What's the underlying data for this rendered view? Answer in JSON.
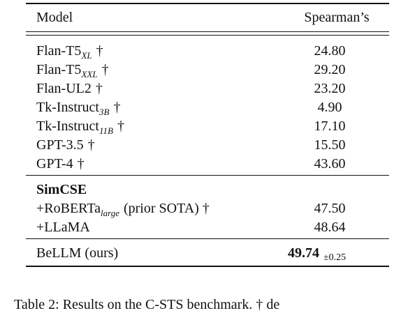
{
  "table": {
    "header": [
      "Model",
      "Spearman’s"
    ],
    "sections": [
      {
        "rows": [
          {
            "model": "Flan-T5",
            "sub": "XL",
            "suffix": "†",
            "score": "24.80"
          },
          {
            "model": "Flan-T5",
            "sub": "XXL",
            "suffix": "†",
            "score": "29.20"
          },
          {
            "model": "Flan-UL2",
            "suffix": "†",
            "score": "23.20"
          },
          {
            "model": "Tk-Instruct",
            "sub": "3B",
            "suffix": "†",
            "score": "4.90"
          },
          {
            "model": "Tk-Instruct",
            "sub": "11B",
            "suffix": "†",
            "score": "17.10"
          },
          {
            "model": "GPT-3.5",
            "suffix": "†",
            "score": "15.50"
          },
          {
            "model": "GPT-4",
            "suffix": "†",
            "score": "43.60"
          }
        ]
      },
      {
        "heading": "SimCSE",
        "rows": [
          {
            "model": "+RoBERTa",
            "sub": "large",
            "suffix": "(prior SOTA) †",
            "score": "47.50"
          },
          {
            "model": "+LLaMA",
            "score": "48.64"
          }
        ]
      },
      {
        "rows": [
          {
            "model": "BeLLM (ours)",
            "score": "49.74",
            "error": "±0.25",
            "bold": true
          }
        ]
      }
    ]
  },
  "caption": "Table 2: Results on the C-STS benchmark. † de"
}
